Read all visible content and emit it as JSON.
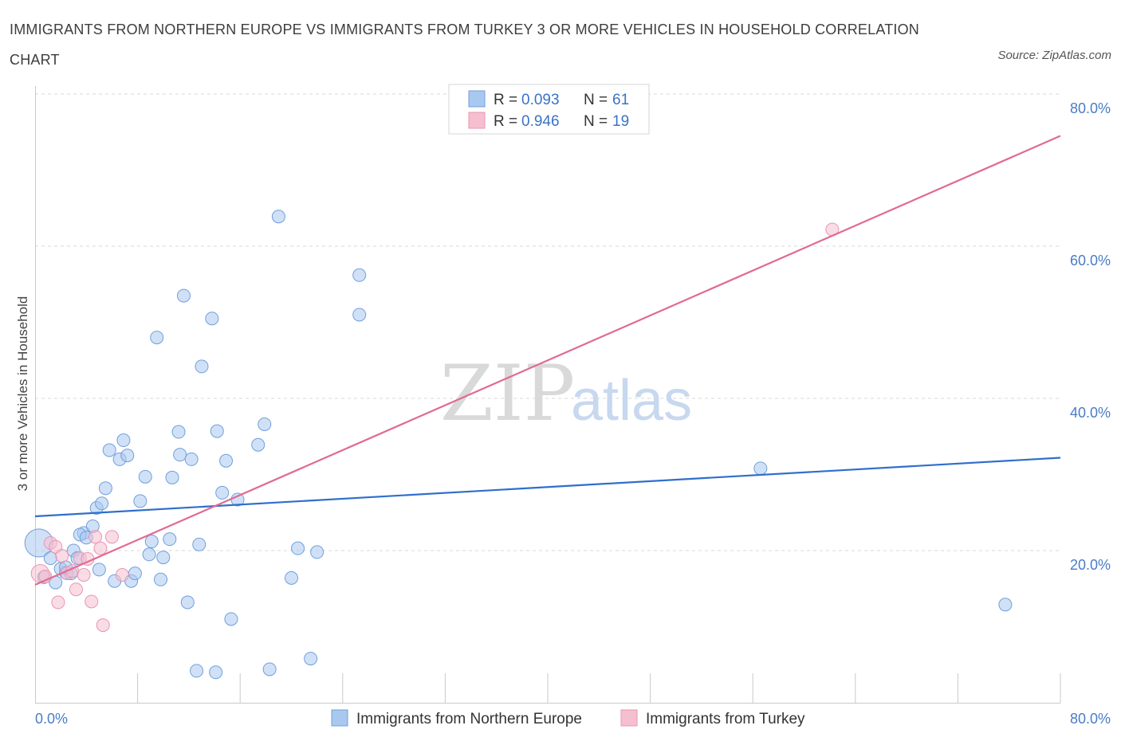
{
  "header": {
    "title": "IMMIGRANTS FROM NORTHERN EUROPE VS IMMIGRANTS FROM TURKEY 3 OR MORE VEHICLES IN HOUSEHOLD CORRELATION CHART",
    "source": "Source: ZipAtlas.com"
  },
  "colors": {
    "blue_fill": "#a9c8f0",
    "blue_stroke": "#6f9fdc",
    "blue_line": "#2f6fcc",
    "pink_fill": "#f6bfd0",
    "pink_stroke": "#e995b1",
    "pink_line": "#e06a95",
    "grid": "#d9d9d9",
    "tick_text": "#4a7cc7"
  },
  "watermark": {
    "zip": "ZIP",
    "atlas": "atlas"
  },
  "chart_data": {
    "type": "scatter",
    "xlabel": "",
    "ylabel": "3 or more Vehicles in Household",
    "xlim": [
      0,
      80
    ],
    "ylim": [
      0,
      80
    ],
    "x_tick_labels": [
      "0.0%",
      "80.0%"
    ],
    "y_ticks": [
      20,
      40,
      60,
      80
    ],
    "y_tick_labels": [
      "20.0%",
      "40.0%",
      "60.0%",
      "80.0%"
    ],
    "grid": true,
    "legend": {
      "placement": "top-center",
      "entries": [
        {
          "r_label": "R =",
          "r_value": "0.093",
          "n_label": "N =",
          "n_value": "61"
        },
        {
          "r_label": "R =",
          "r_value": "0.946",
          "n_label": "N =",
          "n_value": "19"
        }
      ]
    },
    "series": [
      {
        "name": "Immigrants from Northern Europe",
        "color": "blue",
        "points": [
          [
            0.3,
            21.0,
            2.2
          ],
          [
            0.7,
            16.5,
            1
          ],
          [
            1.2,
            19.0,
            1
          ],
          [
            1.6,
            15.8,
            1
          ],
          [
            2.0,
            17.6,
            1
          ],
          [
            2.4,
            17.1,
            1
          ],
          [
            2.8,
            17.0,
            1
          ],
          [
            3.0,
            20.0,
            1
          ],
          [
            3.3,
            19.0,
            1
          ],
          [
            3.8,
            22.3,
            1
          ],
          [
            3.5,
            22.1,
            1
          ],
          [
            4.0,
            21.7,
            1
          ],
          [
            4.5,
            23.2,
            1
          ],
          [
            4.8,
            25.6,
            1
          ],
          [
            5.2,
            26.2,
            1
          ],
          [
            5.0,
            17.5,
            1
          ],
          [
            5.5,
            28.2,
            1
          ],
          [
            5.8,
            33.2,
            1
          ],
          [
            6.2,
            16.0,
            1
          ],
          [
            6.6,
            32.0,
            1
          ],
          [
            6.9,
            34.5,
            1
          ],
          [
            7.2,
            32.5,
            1
          ],
          [
            7.5,
            16.0,
            1
          ],
          [
            7.8,
            17.0,
            1
          ],
          [
            8.2,
            26.5,
            1
          ],
          [
            8.6,
            29.7,
            1
          ],
          [
            8.9,
            19.5,
            1
          ],
          [
            9.1,
            21.2,
            1
          ],
          [
            9.5,
            48.0,
            1
          ],
          [
            9.8,
            16.2,
            1
          ],
          [
            10.0,
            19.1,
            1
          ],
          [
            10.5,
            21.5,
            1
          ],
          [
            10.7,
            29.6,
            1
          ],
          [
            11.2,
            35.6,
            1
          ],
          [
            11.3,
            32.6,
            1
          ],
          [
            11.6,
            53.5,
            1
          ],
          [
            11.9,
            13.2,
            1
          ],
          [
            12.2,
            32.0,
            1
          ],
          [
            12.8,
            20.8,
            1
          ],
          [
            13.0,
            44.2,
            1
          ],
          [
            13.8,
            50.5,
            1
          ],
          [
            12.6,
            4.2,
            1
          ],
          [
            14.1,
            4.0,
            1
          ],
          [
            14.2,
            35.7,
            1
          ],
          [
            14.6,
            27.6,
            1
          ],
          [
            14.9,
            31.8,
            1
          ],
          [
            15.3,
            11.0,
            1
          ],
          [
            15.8,
            26.7,
            1
          ],
          [
            17.4,
            33.9,
            1
          ],
          [
            17.9,
            36.6,
            1
          ],
          [
            18.3,
            4.4,
            1
          ],
          [
            19.0,
            63.9,
            1
          ],
          [
            20.0,
            16.4,
            1
          ],
          [
            20.5,
            20.3,
            1
          ],
          [
            21.5,
            5.8,
            1
          ],
          [
            22.0,
            19.8,
            1
          ],
          [
            25.3,
            56.2,
            1
          ],
          [
            25.3,
            51.0,
            1
          ],
          [
            56.6,
            30.8,
            1
          ],
          [
            75.7,
            12.9,
            1
          ],
          [
            2.4,
            17.8,
            1
          ]
        ],
        "trend": {
          "x": [
            0,
            80
          ],
          "y": [
            24.5,
            32.2
          ]
        }
      },
      {
        "name": "Immigrants from Turkey",
        "color": "pink",
        "points": [
          [
            0.4,
            17.0,
            1.4
          ],
          [
            0.8,
            16.6,
            1
          ],
          [
            1.2,
            21.0,
            1
          ],
          [
            1.6,
            20.5,
            1
          ],
          [
            1.8,
            13.2,
            1
          ],
          [
            2.1,
            19.3,
            1
          ],
          [
            2.5,
            17.0,
            1
          ],
          [
            2.9,
            17.3,
            1
          ],
          [
            3.2,
            14.9,
            1
          ],
          [
            3.5,
            19.0,
            1
          ],
          [
            3.8,
            16.8,
            1
          ],
          [
            4.1,
            18.9,
            1
          ],
          [
            4.4,
            13.3,
            1
          ],
          [
            4.7,
            21.8,
            1
          ],
          [
            5.1,
            20.3,
            1
          ],
          [
            5.3,
            10.2,
            1
          ],
          [
            6.0,
            21.8,
            1
          ],
          [
            6.8,
            16.8,
            1
          ],
          [
            62.2,
            62.2,
            1
          ]
        ],
        "trend": {
          "x": [
            0,
            80
          ],
          "y": [
            15.5,
            74.5
          ]
        }
      }
    ]
  }
}
